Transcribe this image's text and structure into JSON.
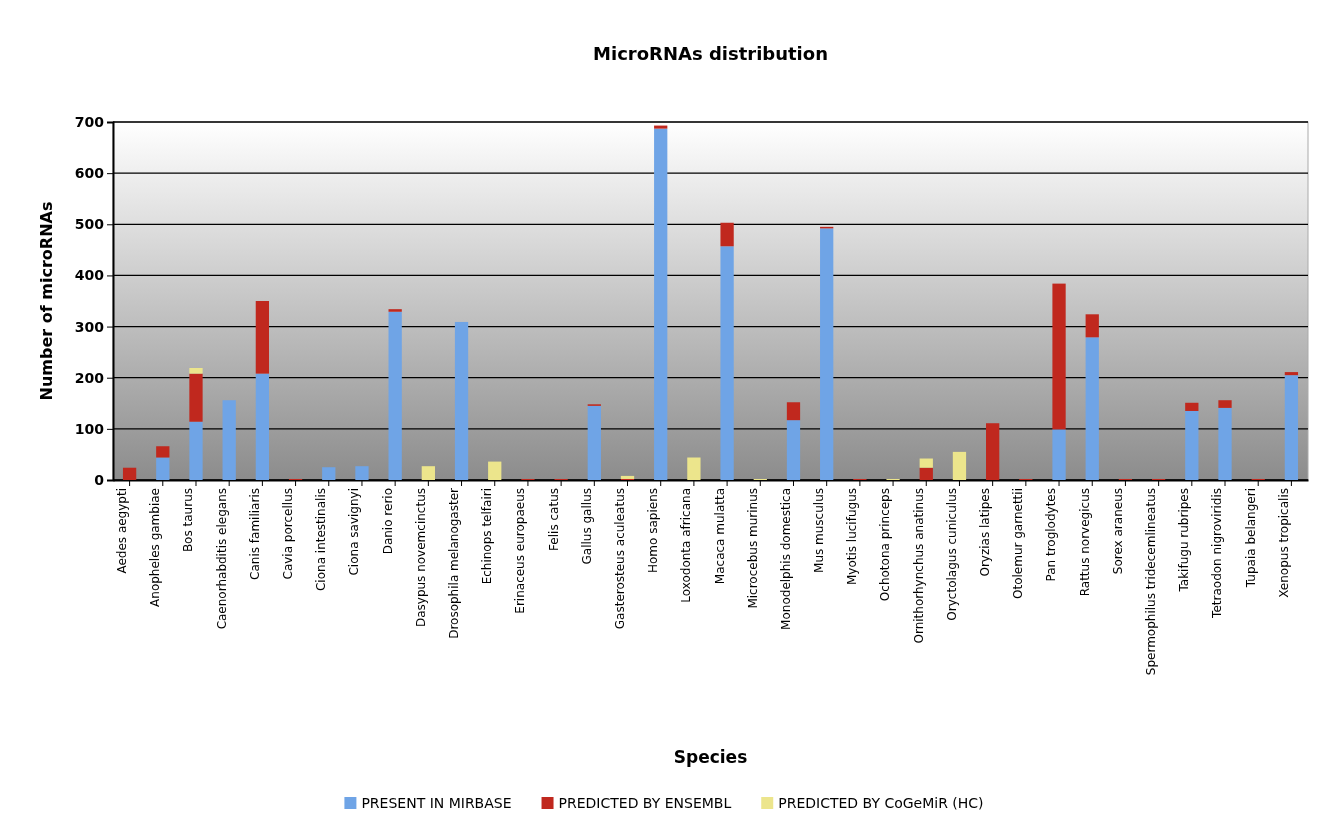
{
  "chart_data": {
    "type": "bar",
    "title": "MicroRNAs distribution",
    "xlabel": "Species",
    "ylabel": "Number of microRNAs",
    "categories": [
      "Aedes aegypti",
      "Anopheles gambiae",
      "Bos taurus",
      "Caenorhabditis elegans",
      "Canis familiaris",
      "Cavia porcellus",
      "Ciona intestinalis",
      "Ciona savignyi",
      "Danio rerio",
      "Dasypus novemcinctus",
      "Drosophila melanogaster",
      "Echinops telfairi",
      "Erinaceus europaeus",
      "Felis catus",
      "Gallus gallus",
      "Gasterosteus aculeatus",
      "Homo sapiens",
      "Loxodonta africana",
      "Macaca mulatta",
      "Microcebus murinus",
      "Monodelphis domestica",
      "Mus musculus",
      "Myotis lucifugus",
      "Ochotona princeps",
      "Ornithorhynchus anatinus",
      "Oryctolagus cuniculus",
      "Oryzias latipes",
      "Otolemur garnettii",
      "Pan troglodytes",
      "Rattus norvegicus",
      "Sorex araneus",
      "Spermophilus tridecemlineatus",
      "Takifugu rubripes",
      "Tetraodon nigroviridis",
      "Tupaia belangeri",
      "Xenopus tropicalis"
    ],
    "stacked": true,
    "series": [
      {
        "name": "PRESENT IN MIRBASE",
        "color": "#6fa4e6",
        "values": [
          0,
          44,
          114,
          156,
          208,
          0,
          25,
          27,
          329,
          0,
          309,
          0,
          0,
          0,
          145,
          0,
          687,
          0,
          457,
          0,
          117,
          492,
          0,
          0,
          0,
          0,
          0,
          0,
          99,
          279,
          0,
          0,
          135,
          141,
          0,
          205
        ]
      },
      {
        "name": "PREDICTED BY ENSEMBL",
        "color": "#c0281e",
        "values": [
          24,
          22,
          94,
          0,
          142,
          2,
          0,
          0,
          5,
          0,
          0,
          0,
          2,
          2,
          3,
          2,
          6,
          0,
          46,
          0,
          35,
          3,
          2,
          0,
          24,
          0,
          111,
          2,
          285,
          45,
          2,
          2,
          16,
          15,
          2,
          6
        ]
      },
      {
        "name": "PREDICTED BY CoGeMiR (HC)",
        "color": "#ece58c",
        "values": [
          0,
          0,
          11,
          0,
          0,
          0,
          0,
          0,
          0,
          27,
          0,
          36,
          0,
          0,
          0,
          6,
          0,
          44,
          0,
          2,
          0,
          0,
          0,
          2,
          18,
          55,
          0,
          0,
          0,
          0,
          0,
          0,
          0,
          0,
          0,
          0
        ]
      }
    ],
    "ylim": [
      0,
      700
    ],
    "yticks": [
      0,
      100,
      200,
      300,
      400,
      500,
      600,
      700
    ],
    "grid": "y",
    "legend": "bottom"
  }
}
